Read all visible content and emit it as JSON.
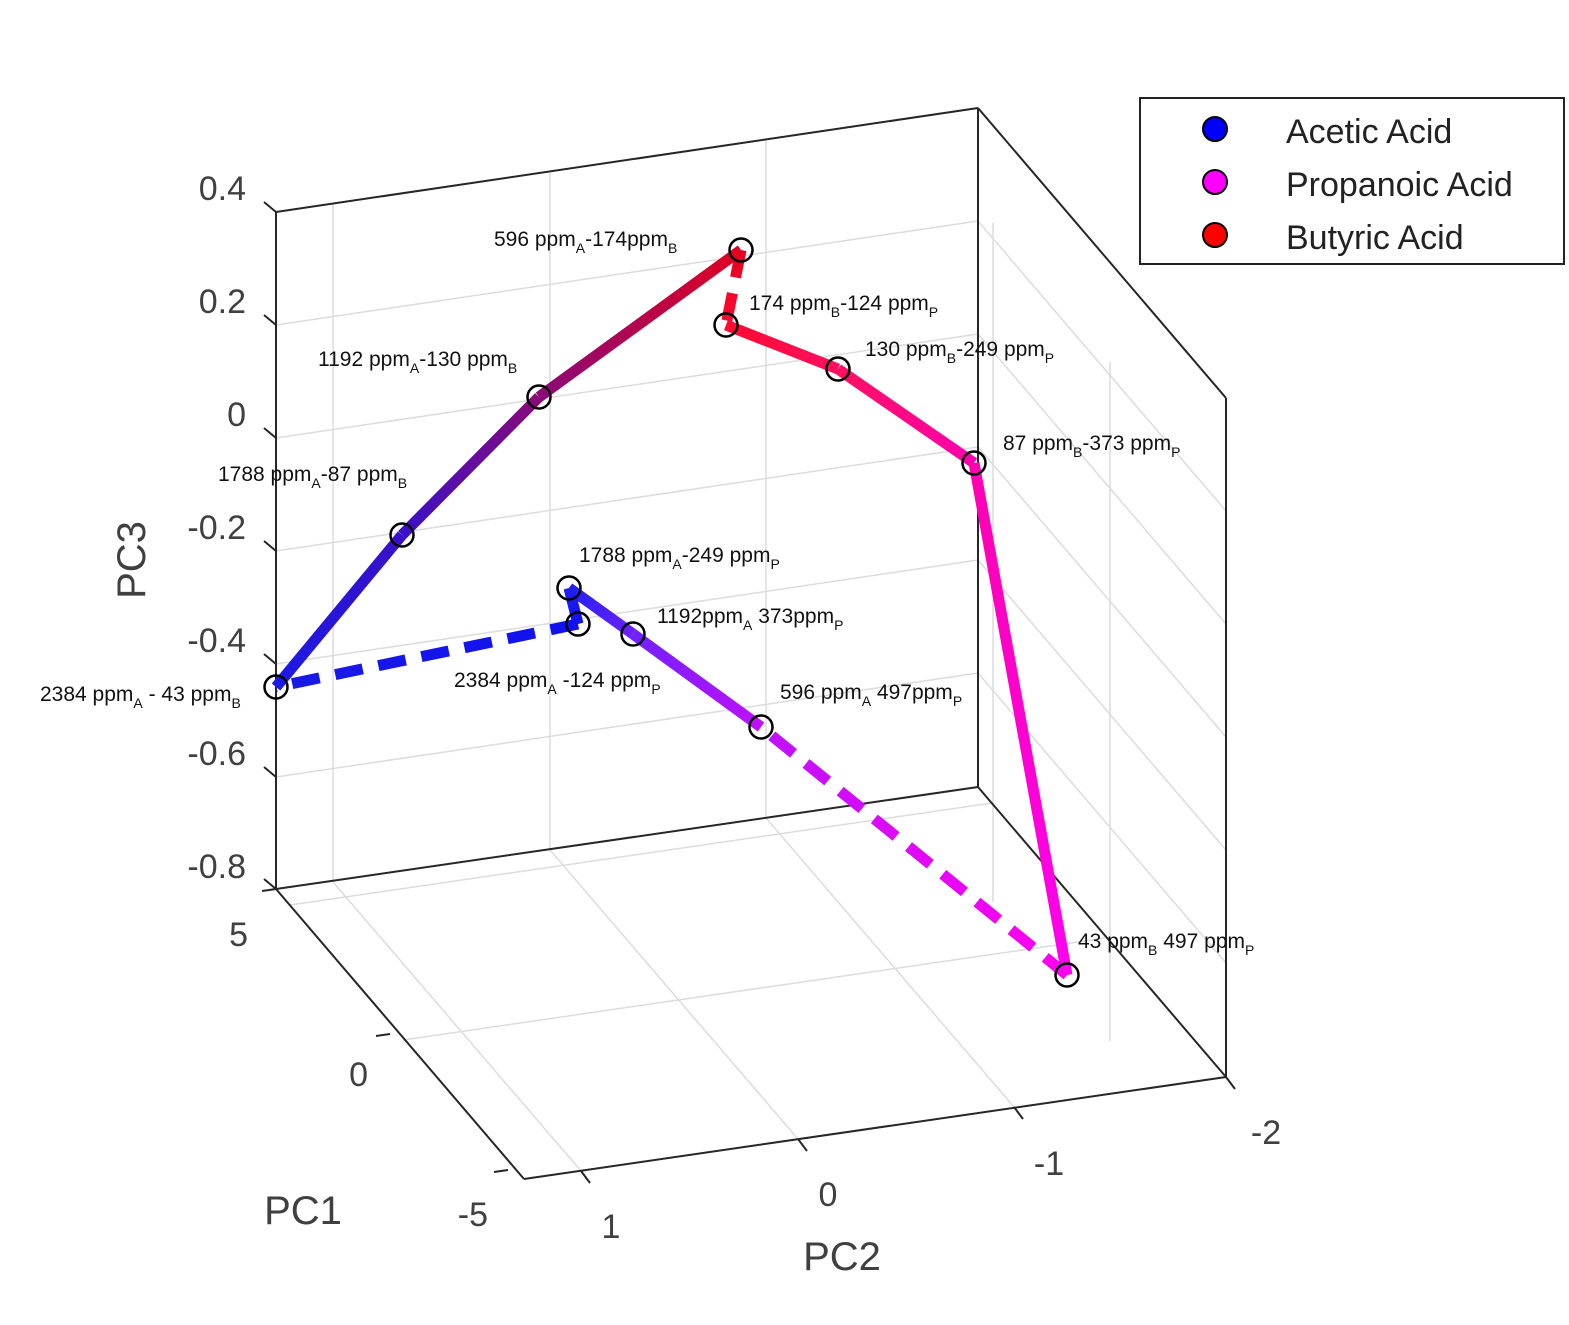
{
  "chart_data": {
    "type": "line",
    "projection": "3d",
    "xlabel": "PC1",
    "ylabel": "PC2",
    "zlabel": "PC3",
    "grid": true,
    "legend_placement": "top-right",
    "axes": {
      "pc3_ticks": [
        "0.4",
        "0.2",
        "0",
        "-0.2",
        "-0.4",
        "-0.6",
        "-0.8"
      ],
      "pc1_ticks": [
        "5",
        "0",
        "-5"
      ],
      "pc2_ticks": [
        "1",
        "0",
        "-1",
        "-2"
      ]
    },
    "legend": [
      {
        "label": "Acetic Acid",
        "color": "#0000ff"
      },
      {
        "label": "Propanoic Acid",
        "color": "#ff00ff"
      },
      {
        "label": "Butyric Acid",
        "color": "#ff0000"
      }
    ],
    "points": [
      {
        "id": "p1",
        "main": "2384 ppm",
        "sub1": "A",
        "mid": " - 43 ppm",
        "sub2": "B",
        "color": "#1a1ae6"
      },
      {
        "id": "p2",
        "main": "1788 ppm",
        "sub1": "A",
        "mid": "-87 ppm",
        "sub2": "B",
        "color": "#3a10c8"
      },
      {
        "id": "p3",
        "main": "1192 ppm",
        "sub1": "A",
        "mid": "-130 ppm",
        "sub2": "B",
        "color": "#8a0a78"
      },
      {
        "id": "p4",
        "main": "596 ppm",
        "sub1": "A",
        "mid": "-174ppm",
        "sub2": "B",
        "color": "#e00020"
      },
      {
        "id": "p5",
        "main": "174 ppm",
        "sub1": "B",
        "mid": "-124 ppm",
        "sub2": "P",
        "color": "#ff0a30"
      },
      {
        "id": "p6",
        "main": "130 ppm",
        "sub1": "B",
        "mid": "-249 ppm",
        "sub2": "P",
        "color": "#ff1060"
      },
      {
        "id": "p7",
        "main": "87 ppm",
        "sub1": "B",
        "mid": "-373 ppm",
        "sub2": "P",
        "color": "#ff00b0"
      },
      {
        "id": "p8",
        "main": "43 ppm",
        "sub1": "B",
        "mid": " 497 ppm",
        "sub2": "P",
        "color": "#ff00ee"
      },
      {
        "id": "p9",
        "main": "596 ppm",
        "sub1": "A",
        "mid": " 497ppm",
        "sub2": "P",
        "color": "#c010ff"
      },
      {
        "id": "p10",
        "main": "1192ppm",
        "sub1": "A",
        "mid": " 373ppm",
        "sub2": "P",
        "color": "#7020ff"
      },
      {
        "id": "p11",
        "main": "1788 ppm",
        "sub1": "A",
        "mid": "-249 ppm",
        "sub2": "P",
        "color": "#2020f0"
      },
      {
        "id": "p12",
        "main": "2384 ppm",
        "sub1": "A",
        "mid": " -124 ppm",
        "sub2": "P",
        "color": "#1010f0"
      }
    ],
    "segments": [
      {
        "from": "p1",
        "to": "p2",
        "style": "solid"
      },
      {
        "from": "p2",
        "to": "p3",
        "style": "solid"
      },
      {
        "from": "p3",
        "to": "p4",
        "style": "solid"
      },
      {
        "from": "p4",
        "to": "p5",
        "style": "dashed"
      },
      {
        "from": "p5",
        "to": "p6",
        "style": "solid"
      },
      {
        "from": "p6",
        "to": "p7",
        "style": "solid"
      },
      {
        "from": "p7",
        "to": "p8",
        "style": "solid"
      },
      {
        "from": "p8",
        "to": "p9",
        "style": "dashed"
      },
      {
        "from": "p9",
        "to": "p10",
        "style": "solid"
      },
      {
        "from": "p10",
        "to": "p11",
        "style": "solid"
      },
      {
        "from": "p11",
        "to": "p12",
        "style": "solid"
      },
      {
        "from": "p12",
        "to": "p1",
        "style": "dashed"
      }
    ]
  }
}
